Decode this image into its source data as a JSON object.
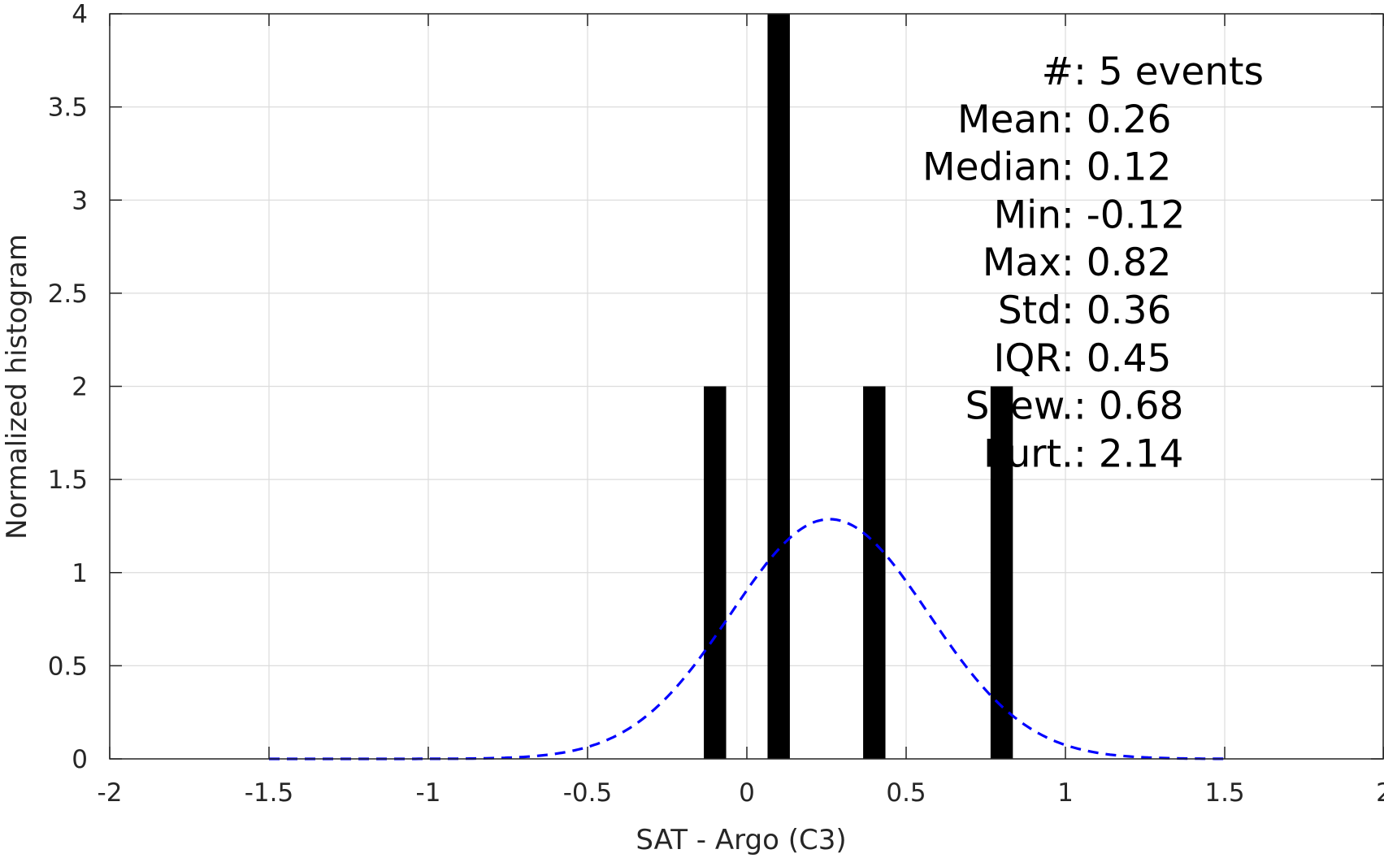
{
  "chart_data": {
    "type": "bar",
    "xlabel": "SAT - Argo (C3)",
    "ylabel": "Normalized histogram",
    "xlim": [
      -2,
      2
    ],
    "ylim": [
      0,
      4
    ],
    "grid": true,
    "x_ticks": [
      {
        "value": -2,
        "label": "-2"
      },
      {
        "value": -1.5,
        "label": "-1.5"
      },
      {
        "value": -1,
        "label": "-1"
      },
      {
        "value": -0.5,
        "label": "-0.5"
      },
      {
        "value": 0,
        "label": "0"
      },
      {
        "value": 0.5,
        "label": "0.5"
      },
      {
        "value": 1,
        "label": "1"
      },
      {
        "value": 1.5,
        "label": "1.5"
      },
      {
        "value": 2,
        "label": "2"
      }
    ],
    "y_ticks": [
      {
        "value": 0,
        "label": "0"
      },
      {
        "value": 0.5,
        "label": "0.5"
      },
      {
        "value": 1,
        "label": "1"
      },
      {
        "value": 1.5,
        "label": "1.5"
      },
      {
        "value": 2,
        "label": "2"
      },
      {
        "value": 2.5,
        "label": "2.5"
      },
      {
        "value": 3,
        "label": "3"
      },
      {
        "value": 3.5,
        "label": "3.5"
      },
      {
        "value": 4,
        "label": "4"
      }
    ],
    "histogram": {
      "color": "#000000",
      "bin_width": 0.07,
      "bins": [
        {
          "x": -0.1,
          "y": 2
        },
        {
          "x": 0.1,
          "y": 4
        },
        {
          "x": 0.4,
          "y": 2
        },
        {
          "x": 0.8,
          "y": 2
        }
      ]
    },
    "fit_curve": {
      "style": "dashed",
      "color": "#0000ff",
      "mean": 0.26,
      "std": 0.31,
      "x_range": [
        -1.5,
        1.5
      ]
    },
    "stats": [
      {
        "label": "#  ",
        "value": "5 events",
        "align": "wide"
      },
      {
        "label": "Mean ",
        "value": "0.26",
        "align": "narrow"
      },
      {
        "label": "Median ",
        "value": "0.12",
        "align": "narrow"
      },
      {
        "label": "Min ",
        "value": "-0.12",
        "align": "narrow"
      },
      {
        "label": "Max ",
        "value": "0.82",
        "align": "narrow"
      },
      {
        "label": "Std ",
        "value": "0.36",
        "align": "narrow"
      },
      {
        "label": "IQR ",
        "value": "0.45",
        "align": "narrow"
      },
      {
        "label": "Skew. ",
        "value": "0.68",
        "align": "wide"
      },
      {
        "label": "Kurt. ",
        "value": "2.14",
        "align": "wide"
      }
    ]
  }
}
